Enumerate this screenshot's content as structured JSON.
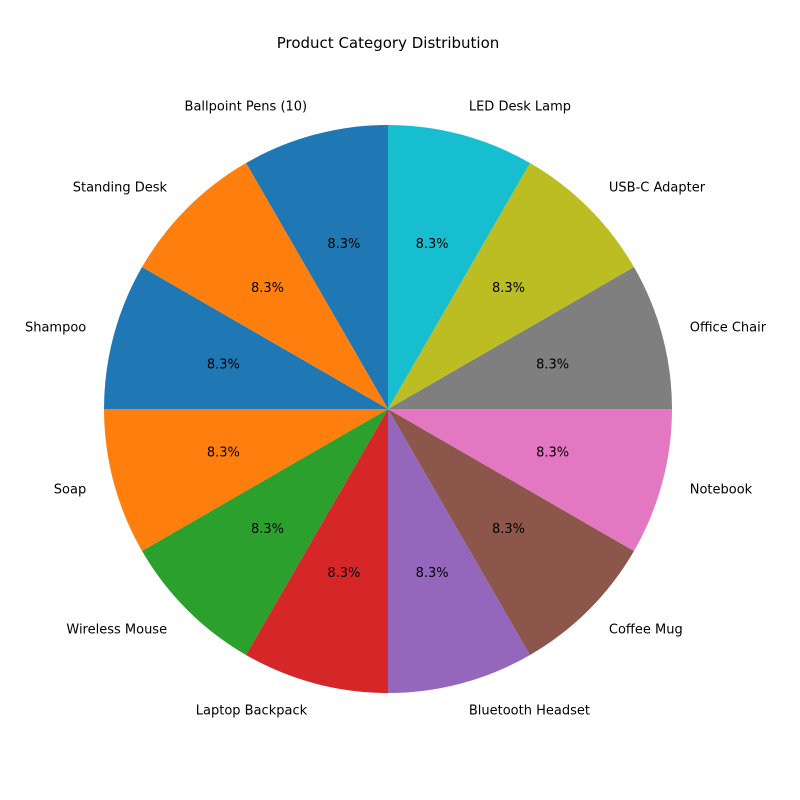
{
  "chart_data": {
    "type": "pie",
    "title": "Product Category Distribution",
    "categories": [
      "Shampoo",
      "Soap",
      "Wireless Mouse",
      "Laptop Backpack",
      "Bluetooth Headset",
      "Coffee Mug",
      "Notebook",
      "Office Chair",
      "USB-C Adapter",
      "LED Desk Lamp",
      "Ballpoint Pens (10)",
      "Standing Desk"
    ],
    "values": [
      1,
      1,
      1,
      1,
      1,
      1,
      1,
      1,
      1,
      1,
      1,
      1
    ],
    "percent_labels": [
      "8.3%",
      "8.3%",
      "8.3%",
      "8.3%",
      "8.3%",
      "8.3%",
      "8.3%",
      "8.3%",
      "8.3%",
      "8.3%",
      "8.3%",
      "8.3%"
    ],
    "colors": [
      "#1f77b4",
      "#ff7f0e",
      "#2ca02c",
      "#d62728",
      "#9467bd",
      "#8c564b",
      "#e377c2",
      "#7f7f7f",
      "#bcbd22",
      "#17becf",
      "#1f77b4",
      "#ff7f0e"
    ],
    "start_angle_deg": 150,
    "direction": "counterclockwise",
    "legend": "none"
  }
}
